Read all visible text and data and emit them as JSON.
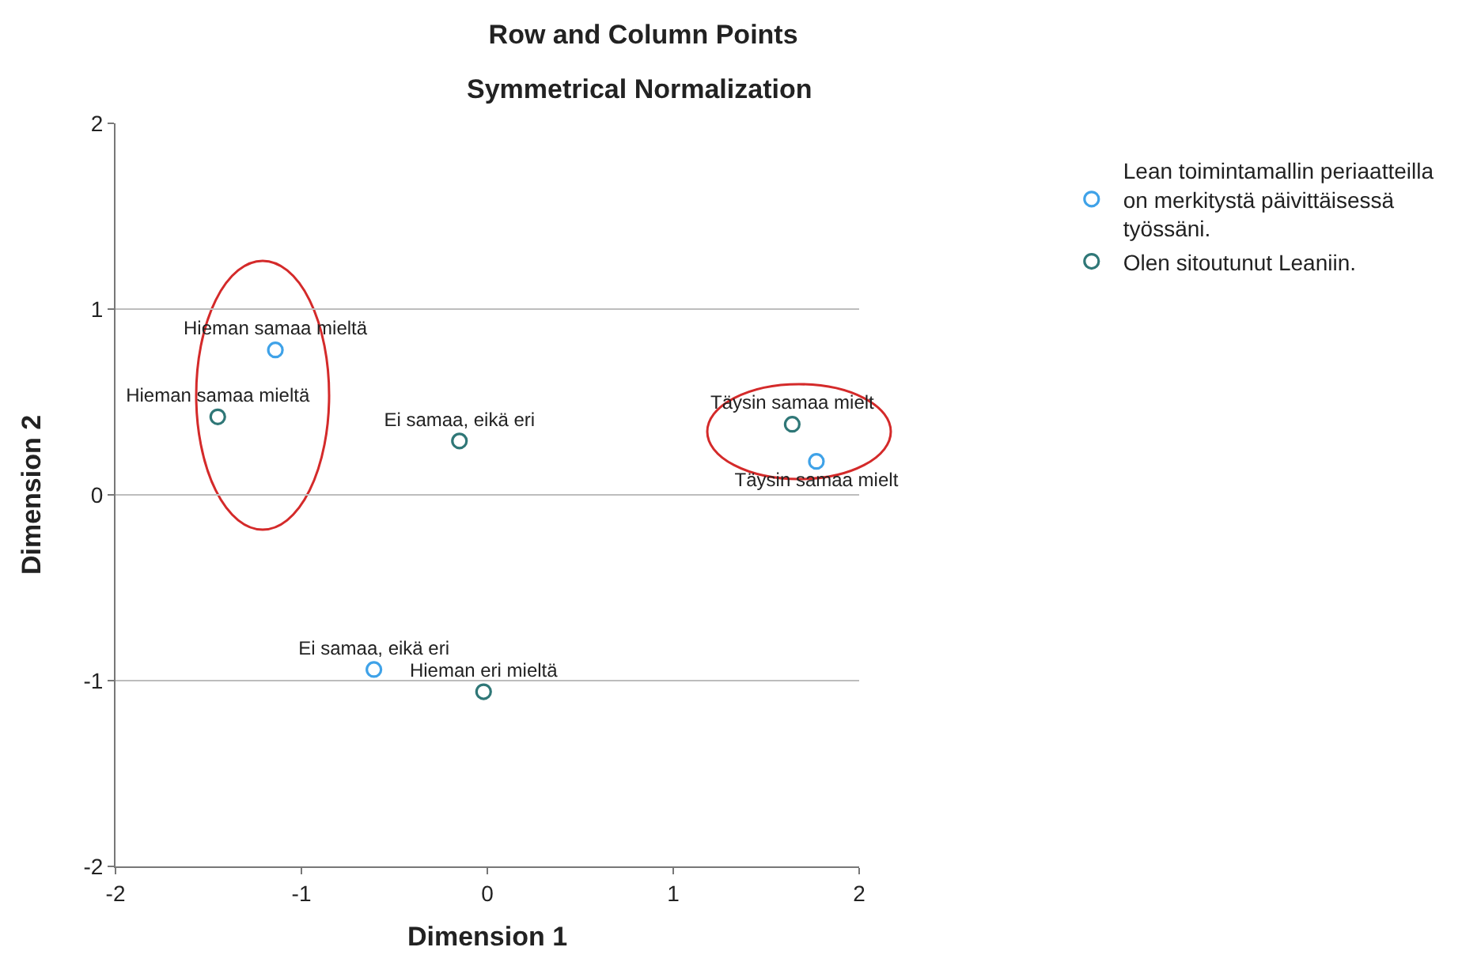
{
  "chart_data": {
    "type": "scatter",
    "title": "Row and Column Points",
    "subtitle": "Symmetrical Normalization",
    "xlabel": "Dimension 1",
    "ylabel": "Dimension 2",
    "series": [
      {
        "name": "Lean toimintamallin periaatteilla on merkitystä päivittäisessä työssäni.",
        "color": "#3fa2e8",
        "x": [
          -1.14,
          -0.61,
          1.77
        ],
        "values": [
          0.78,
          -0.94,
          0.18
        ],
        "value_labels": [
          "Hieman samaa mieltä",
          "Ei samaa, eikä eri",
          "Täysin samaa mielt"
        ]
      },
      {
        "name": "Olen sitoutunut Leaniin.",
        "color": "#2f7777",
        "x": [
          -1.45,
          -0.15,
          1.64,
          -0.02
        ],
        "values": [
          0.42,
          0.29,
          0.38,
          -1.06
        ],
        "value_labels": [
          "Hieman samaa mieltä",
          "Ei samaa, eikä eri",
          "Täysin samaa mielt",
          "Hieman eri mieltä"
        ]
      }
    ],
    "xlim": [
      -2,
      2
    ],
    "ylim": [
      -2,
      2
    ],
    "xticks": [
      -2,
      -1,
      0,
      1,
      2
    ],
    "yticks": [
      -2,
      -1,
      0,
      1,
      2
    ],
    "grid": "y",
    "legend": "top right",
    "marker": "circle"
  }
}
